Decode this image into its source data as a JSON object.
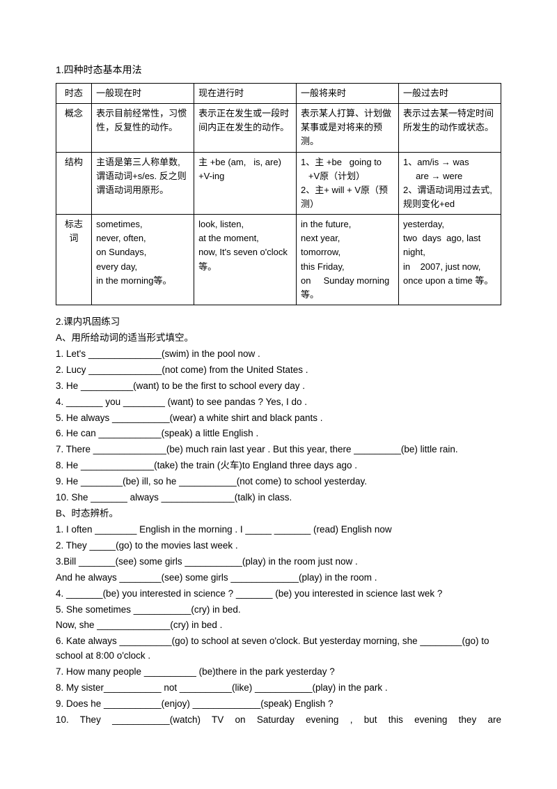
{
  "headings": {
    "part1": "1.四种时态基本用法",
    "part2": "2.课内巩固练习",
    "subA": "A、用所给动词的适当形式填空。",
    "subB": "B、时态辨析。"
  },
  "table": {
    "r0": {
      "c0": "时态",
      "c1": "一般现在时",
      "c2": "现在进行时",
      "c3": "一般将来时",
      "c4": "一般过去时"
    },
    "r1": {
      "c0": "概念",
      "c1": "表示目前经常性，习惯性，反复性的动作。",
      "c2": "表示正在发生或一段时间内正在发生的动作。",
      "c3": "表示某人打算、计划做某事或是对将来的预测。",
      "c4": "表示过去某一特定时间所发生的动作或状态。"
    },
    "r2": {
      "c0": "结构",
      "c1": "主语是第三人称单数, 谓语动词+s/es. 反之则谓语动词用原形。",
      "c2": "主 +be (am,   is, are)\n+V-ing",
      "c3": "1、主 +be   going to\n   +V原（计划）\n2、主+ will + V原（预测）",
      "c4": "1、am/is → was\n     are → were\n2、谓语动词用过去式, 规则变化+ed"
    },
    "r3": {
      "c0": "标志词",
      "c1": "sometimes,\nnever, often,\non Sundays,\nevery day,\nin the morning等。",
      "c2": "look, listen,\nat the moment,\nnow, It's seven o'clock 等。",
      "c3": "in the future,\nnext year,\ntomorrow,\nthis Friday,\non     Sunday morning 等。",
      "c4": "yesterday,\ntwo  days  ago, last night,\nin    2007, just now, once upon a time 等。"
    }
  },
  "exA": {
    "q1": "1. Let's ______________(swim) in the pool now .",
    "q2": "2. Lucy ______________(not come) from the United States .",
    "q3": "3. He __________(want) to be the first to school every day .",
    "q4": "4. _______ you ________ (want) to see pandas ?   Yes, I do .",
    "q5": "5. He always ___________(wear) a white shirt and black pants .",
    "q6": "6. He can ____________(speak) a little English .",
    "q7": "7. There ______________(be) much rain last year . But this year, there _________(be) little rain.",
    "q8": "8. He ______________(take) the train (火车)to England three days ago .",
    "q9": "9. He ________(be) ill, so he ___________(not come) to school yesterday.",
    "q10": "10. She _______  always ______________(talk) in class."
  },
  "exB": {
    "q1": "1. I often ________ English in the morning . I _____  _______ (read) English now",
    "q2": "2. They _____(go) to the movies last week .",
    "q3a": "3.Bill _______(see) some girls ___________(play) in the room just now .",
    "q3b": "And he always ________(see) some girls _____________(play) in the room .",
    "q4": "4. _______(be) you interested in science ? _______ (be) you interested in science last wek ?",
    "q5a": "5. She sometimes ___________(cry) in bed.",
    "q5b": "Now, she ______________(cry) in bed .",
    "q6": "6. Kate always __________(go) to school at seven o'clock. But yesterday morning, she ________(go) to school at 8:00 o'clock .",
    "q7": "7. How many people __________ (be)there in the park yesterday ?",
    "q8": "8. My sister___________ not __________(like)  ___________(play) in the park .",
    "q9": "9. Does he ___________(enjoy)  _____________(speak) English ?",
    "q10": "10.  They  ___________(watch)  TV  on  Saturday  evening  ,  but  this  evening  they  are"
  }
}
